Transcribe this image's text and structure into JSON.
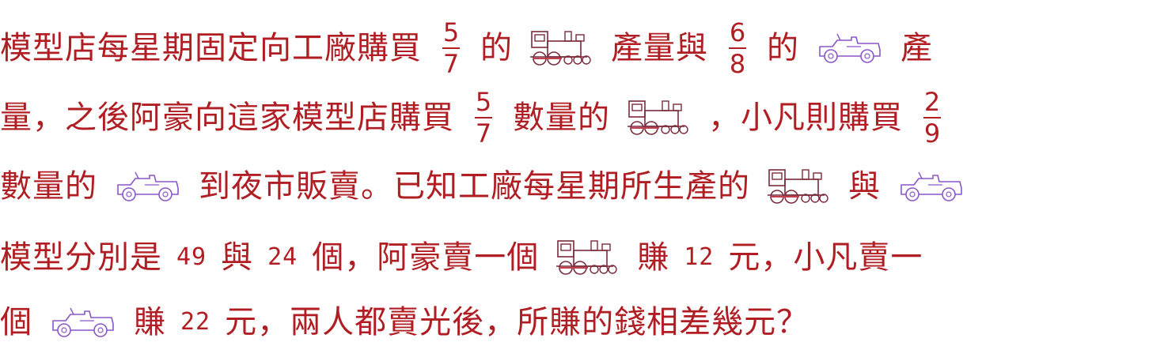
{
  "problem": {
    "l1": [
      "模型店每星期固定向工廠購買",
      "5",
      "7",
      "的",
      "產量與",
      "6",
      "8",
      "的",
      "產"
    ],
    "l2": [
      "量，之後阿豪向這家模型店購買",
      "5",
      "7",
      "數量的",
      "，小凡則購買",
      "2",
      "9"
    ],
    "l3": [
      "數量的",
      "到夜市販賣。已知工廠每星期所生產的",
      "與"
    ],
    "l4": [
      "模型分別是",
      "49",
      "與",
      "24",
      "個，阿豪賣一個",
      "賺",
      "12",
      "元，小凡賣一"
    ],
    "l5": [
      "個",
      "賺",
      "22",
      "元，兩人都賣光後，所賺的錢相差幾元？"
    ]
  },
  "icons": {
    "train": "train-model-icon",
    "jeep": "jeep-model-icon"
  },
  "colors": {
    "text": "#b01e23",
    "train": "#7a2a3a",
    "jeep": "#8a56c8"
  }
}
